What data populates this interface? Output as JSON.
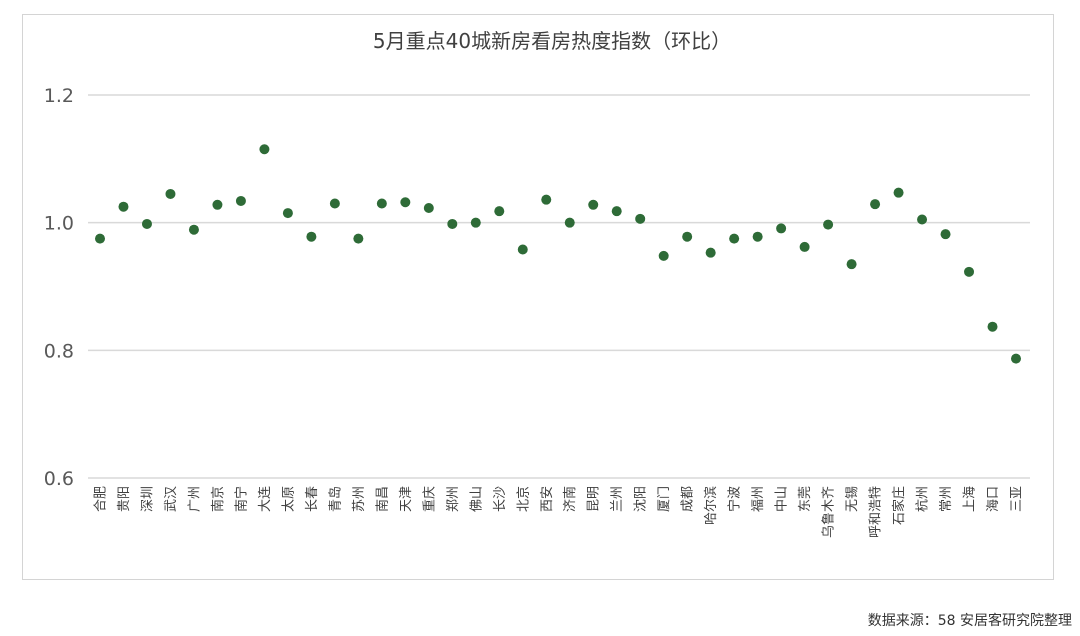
{
  "source_note": "数据来源：58 安居客研究院整理",
  "chart_data": {
    "type": "scatter",
    "title": "5月重点40城新房看房热度指数（环比）",
    "xlabel": "",
    "ylabel": "",
    "ylim": [
      0.6,
      1.2
    ],
    "yticks": [
      "0.6",
      "0.8",
      "1.0",
      "1.2"
    ],
    "grid": true,
    "marker_color": "#2e6b37",
    "categories": [
      "合肥",
      "贵阳",
      "深圳",
      "武汉",
      "广州",
      "南京",
      "南宁",
      "大连",
      "太原",
      "长春",
      "青岛",
      "苏州",
      "南昌",
      "天津",
      "重庆",
      "郑州",
      "佛山",
      "长沙",
      "北京",
      "西安",
      "济南",
      "昆明",
      "兰州",
      "沈阳",
      "厦门",
      "成都",
      "哈尔滨",
      "宁波",
      "福州",
      "中山",
      "东莞",
      "乌鲁木齐",
      "无锡",
      "呼和浩特",
      "石家庄",
      "杭州",
      "常州",
      "上海",
      "海口",
      "三亚"
    ],
    "values": [
      0.975,
      1.025,
      0.998,
      1.045,
      0.989,
      1.028,
      1.034,
      1.115,
      1.015,
      0.978,
      1.03,
      0.975,
      1.03,
      1.032,
      1.023,
      0.998,
      1.0,
      1.018,
      0.958,
      1.036,
      1.0,
      1.028,
      1.018,
      1.006,
      0.948,
      0.978,
      0.953,
      0.975,
      0.978,
      0.991,
      0.962,
      0.997,
      0.935,
      1.029,
      1.047,
      1.005,
      0.982,
      0.923,
      0.837,
      0.787
    ]
  }
}
